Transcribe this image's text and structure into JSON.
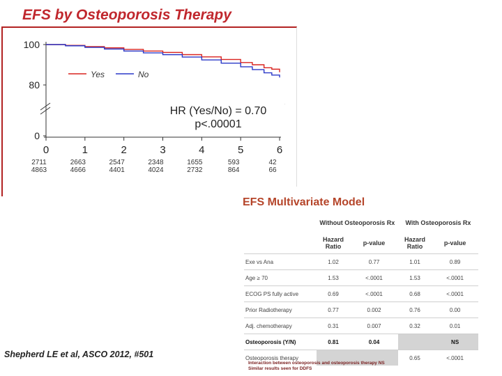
{
  "slide": {
    "title": "EFS by Osteoporosis Therapy",
    "citation": "Shepherd LE et al, ASCO 2012, #501"
  },
  "km": {
    "hr_line1": "HR (Yes/No) = 0.70",
    "hr_line2": "p<.00001",
    "colors": {
      "yes": "#d9231f",
      "no": "#2a38c8"
    }
  },
  "chart_data": {
    "type": "line",
    "title": "",
    "xlabel": "",
    "ylabel": "",
    "x_ticks": [
      "0",
      "1",
      "2",
      "3",
      "4",
      "5",
      "6"
    ],
    "y_ticks": [
      "100",
      "80",
      "0"
    ],
    "xlim": [
      0,
      6
    ],
    "ylim_upper": [
      80,
      100
    ],
    "axis_break": true,
    "legend": {
      "placement": "upper-left",
      "entries": [
        "Yes",
        "No"
      ]
    },
    "series": [
      {
        "name": "Yes",
        "x": [
          0,
          0.5,
          1,
          1.5,
          2,
          2.5,
          3,
          3.5,
          4,
          4.5,
          5,
          5.3,
          5.6,
          5.8,
          6.0
        ],
        "values": [
          100,
          99.6,
          99.0,
          98.4,
          97.6,
          96.8,
          96.1,
          95.0,
          93.9,
          92.6,
          91.1,
          90.0,
          88.5,
          87.8,
          86.3
        ]
      },
      {
        "name": "No",
        "x": [
          0,
          0.5,
          1,
          1.5,
          2,
          2.5,
          3,
          3.5,
          4,
          4.5,
          5,
          5.3,
          5.6,
          5.8,
          6.0
        ],
        "values": [
          100,
          99.4,
          98.6,
          97.8,
          96.8,
          95.9,
          95.0,
          93.8,
          92.4,
          90.8,
          89.0,
          87.6,
          86.0,
          84.9,
          83.7
        ]
      }
    ],
    "at_risk": {
      "yes": [
        "2711",
        "2663",
        "2547",
        "2348",
        "1655",
        "593",
        "42"
      ],
      "no": [
        "4863",
        "4666",
        "4401",
        "4024",
        "2732",
        "864",
        "66"
      ]
    }
  },
  "table": {
    "title": "EFS Multivariate Model",
    "group_without": "Without Osteoporosis Rx",
    "group_with": "With Osteoporosis Rx",
    "col_hr": "Hazard Ratio",
    "col_p": "p-value",
    "rows": [
      {
        "label": "Exe vs Ana",
        "hr1": "1.02",
        "p1": "0.77",
        "hr2": "1.01",
        "p2": "0.89"
      },
      {
        "label": "Age ≥ 70",
        "hr1": "1.53",
        "p1": "<.0001",
        "hr2": "1.53",
        "p2": "<.0001"
      },
      {
        "label": "ECOG PS fully active",
        "hr1": "0.69",
        "p1": "<.0001",
        "hr2": "0.68",
        "p2": "<.0001"
      },
      {
        "label": "Prior Radiotherapy",
        "hr1": "0.77",
        "p1": "0.002",
        "hr2": "0.76",
        "p2": "0.00"
      },
      {
        "label": "Adj. chemotherapy",
        "hr1": "0.31",
        "p1": "0.007",
        "hr2": "0.32",
        "p2": "0.01"
      },
      {
        "label": "Osteoporosis (Y/N)",
        "hr1": "0.81",
        "p1": "0.04",
        "hr2": "",
        "p2": "NS"
      },
      {
        "label": "Osteoporosis therapy",
        "hr1": "",
        "p1": "",
        "hr2": "0.65",
        "p2": "<.0001"
      }
    ],
    "footnote1": "Interaction between osteoporosis and osteoporosis therapy NS",
    "footnote2": "Similar results seen for DDFS"
  }
}
